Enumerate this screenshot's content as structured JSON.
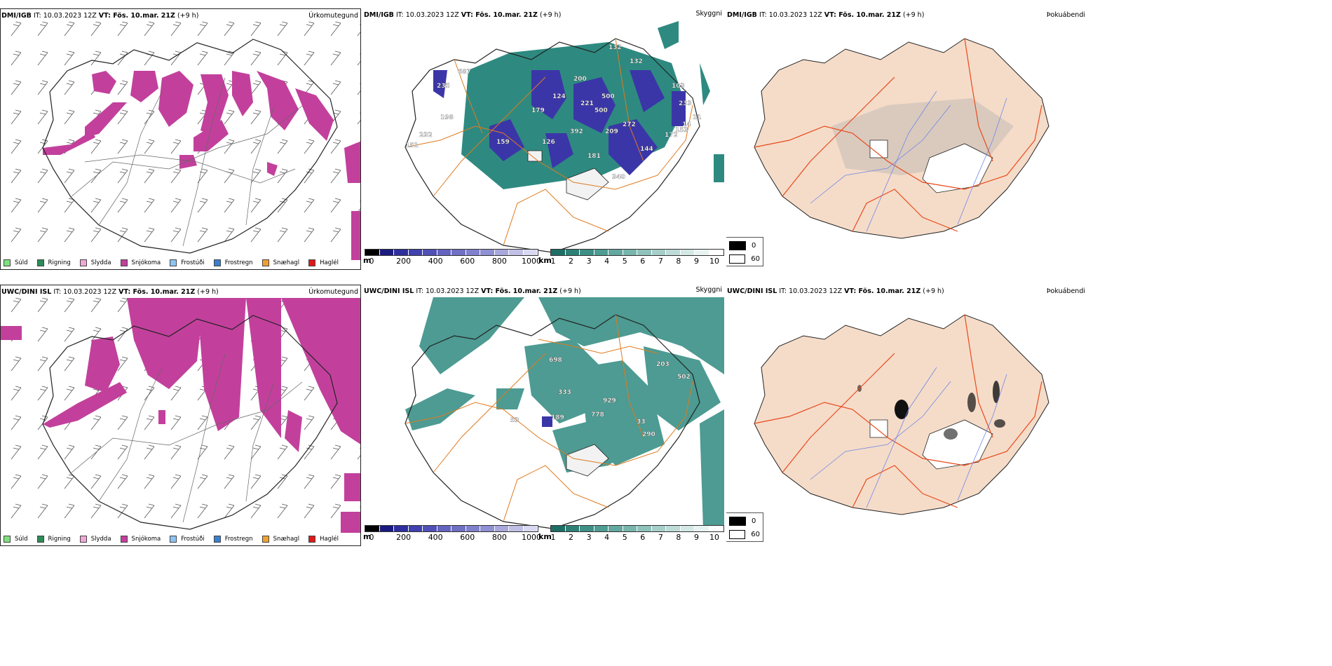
{
  "colors": {
    "snow": "#c2409c",
    "teal": "#2e8a80",
    "blue": "#3b36a8",
    "road": "#e07a1f",
    "coast": "#222222",
    "land_fog": "#f5dcc9",
    "river": "#6f86e6",
    "roadred": "#e84a1c"
  },
  "rows": [
    {
      "id": "dmi",
      "precip": {
        "title_bold": "DMI/IGB",
        "it_text": "IT: 10.03.2023 12Z",
        "vt_bold": "VT: Fös. 10.mar. 21Z",
        "offset": "(+9 h)",
        "right_label": "Úrkomutegund"
      },
      "vis": {
        "title_bold": "DMI/IGB",
        "it_text": "IT: 10.03.2023 12Z",
        "vt_bold": "VT: Fös. 10.mar. 21Z",
        "offset": "(+9 h)",
        "right_label": "Skyggni",
        "labels": [
          "132",
          "132",
          "200",
          "500",
          "103",
          "221",
          "500",
          "272",
          "209",
          "172",
          "144",
          "126",
          "181",
          "340",
          "159",
          "392",
          "233",
          "198",
          "179",
          "232",
          "151",
          "687",
          "235",
          "14",
          "153",
          "11",
          "124"
        ]
      },
      "fog": {
        "title_bold": "DMI/IGB",
        "it_text": "IT: 10.03.2023 12Z",
        "vt_bold": "VT: Fös. 10.mar. 21Z",
        "offset": "(+9 h)",
        "right_label": "Þokuábendi"
      }
    },
    {
      "id": "uwc",
      "precip": {
        "title_bold": "UWC/DINI ISL",
        "it_text": "IT: 10.03.2023 12Z",
        "vt_bold": "VT: Fös. 10.mar. 21Z",
        "offset": "(+9 h)",
        "right_label": "Úrkomutegund"
      },
      "vis": {
        "title_bold": "UWC/DINI ISL",
        "it_text": "IT: 10.03.2023 12Z",
        "vt_bold": "VT: Fös. 10.mar. 21Z",
        "offset": "(+9 h)",
        "right_label": "Skyggni",
        "labels": [
          "698",
          "333",
          "203",
          "502",
          "929",
          "778",
          "33",
          "290",
          "53",
          "189"
        ]
      },
      "fog": {
        "title_bold": "UWC/DINI ISL",
        "it_text": "IT: 10.03.2023 12Z",
        "vt_bold": "VT: Fös. 10.mar. 21Z",
        "offset": "(+9 h)",
        "right_label": "Þokuábendi"
      }
    }
  ],
  "precip_legend": [
    {
      "label": "Súld",
      "color": "#7fe07f"
    },
    {
      "label": "Rigning",
      "color": "#2e8b57"
    },
    {
      "label": "Slydda",
      "color": "#f0a8d8"
    },
    {
      "label": "Snjókoma",
      "color": "#c2409c"
    },
    {
      "label": "Frostúði",
      "color": "#8ec3f2"
    },
    {
      "label": "Frostregn",
      "color": "#3a7fd0"
    },
    {
      "label": "Snæhagl",
      "color": "#f0a030"
    },
    {
      "label": "Haglél",
      "color": "#e01818"
    }
  ],
  "vis_scale_m": {
    "unit": "m",
    "ticks": [
      "0",
      "200",
      "400",
      "600",
      "800",
      "1000"
    ],
    "colors": [
      "#000000",
      "#1a1a80",
      "#2e2e9e",
      "#4040b0",
      "#5050b8",
      "#6464c0",
      "#7070c4",
      "#8080cc",
      "#9090d4",
      "#a8a8dc",
      "#c0c0e6",
      "#d8d8f0"
    ]
  },
  "vis_scale_km": {
    "unit": "km",
    "ticks": [
      "1",
      "2",
      "3",
      "4",
      "5",
      "6",
      "7",
      "8",
      "9",
      "10"
    ],
    "colors": [
      "#1e6e66",
      "#2e8077",
      "#3e8f86",
      "#4f9c93",
      "#62a8a0",
      "#78b5ad",
      "#8fc2bb",
      "#a6cfc9",
      "#bddcd7",
      "#d4e9e5",
      "#e9f4f2",
      "#ffffff"
    ]
  },
  "fog_legend": [
    {
      "label": "0",
      "color": "#000000"
    },
    {
      "label": "60",
      "color": "#ffffff"
    }
  ]
}
